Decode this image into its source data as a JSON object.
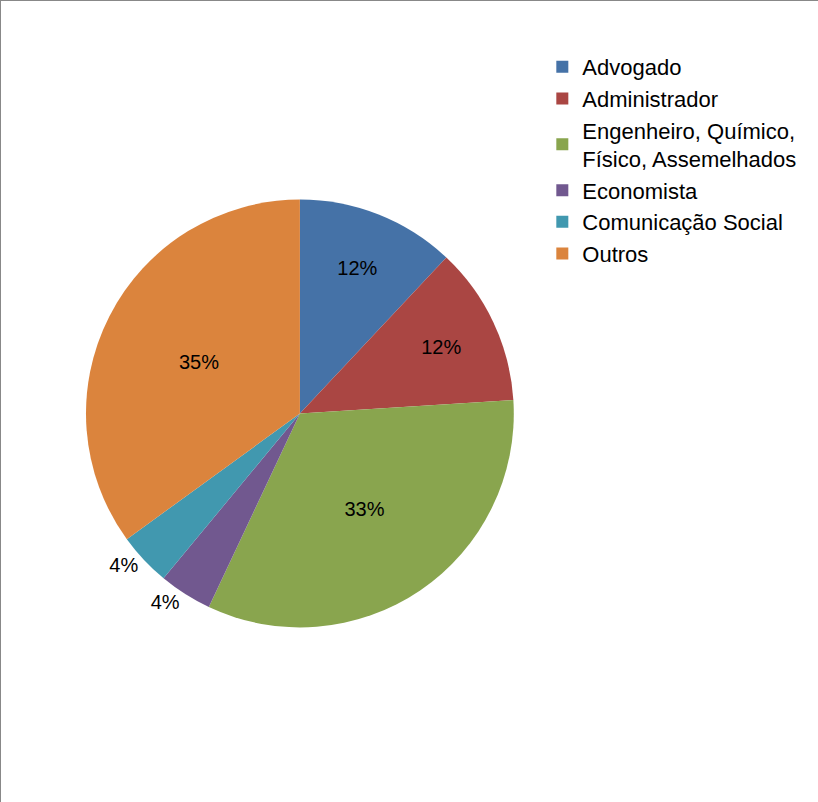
{
  "chart_data": {
    "type": "pie",
    "categories": [
      "Advogado",
      "Administrador",
      "Engenheiro, Químico, Físico, Assemelhados",
      "Economista",
      "Comunicação Social",
      "Outros"
    ],
    "values": [
      12,
      12,
      33,
      4,
      4,
      35
    ],
    "value_labels": [
      "12%",
      "12%",
      "33%",
      "4%",
      "4%",
      "35%"
    ],
    "colors": [
      "#4572A7",
      "#AA4643",
      "#89A54E",
      "#71588F",
      "#4198AF",
      "#DB843D"
    ],
    "data_labels": true,
    "legend": "right"
  }
}
